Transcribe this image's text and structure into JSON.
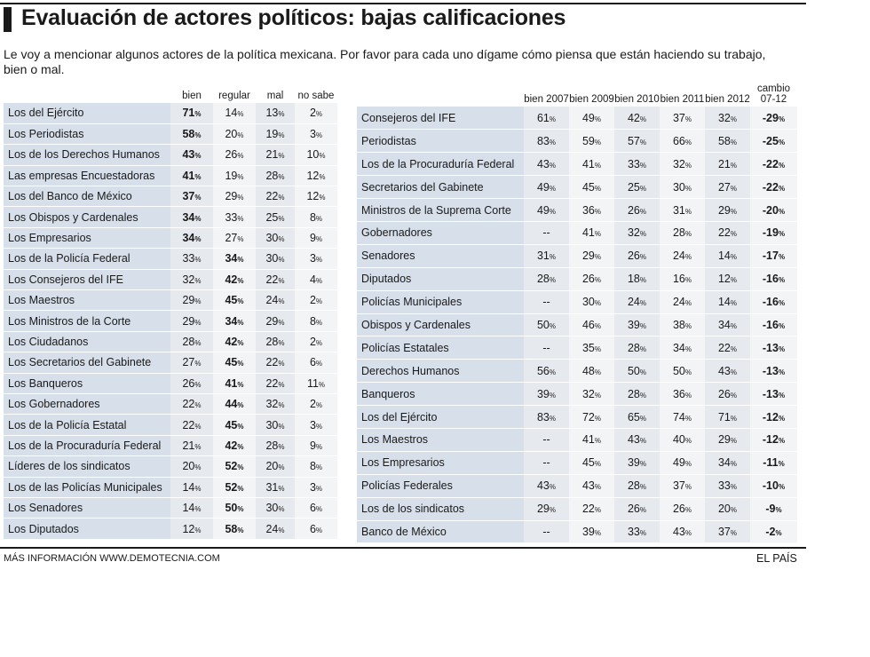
{
  "title": "Evaluación de actores políticos: bajas calificaciones",
  "subtitle": "Le voy a mencionar algunos actores de la política mexicana. Por favor para cada uno dígame cómo piensa que están haciendo su trabajo, bien o mal.",
  "footer": {
    "source": "MÁS INFORMACIÓN WWW.DEMOTECNIA.COM",
    "brand": "EL PAÍS"
  },
  "chart_data": [
    {
      "type": "table",
      "columns": [
        "bien",
        "regular",
        "mal",
        "no sabe"
      ],
      "unit": "%",
      "highlight_rule": "largest value per row shown in bold",
      "rows": [
        {
          "actor": "Los del Ejército",
          "values": [
            71,
            14,
            13,
            2
          ]
        },
        {
          "actor": "Los Periodistas",
          "values": [
            58,
            20,
            19,
            3
          ]
        },
        {
          "actor": "Los de los Derechos Humanos",
          "values": [
            43,
            26,
            21,
            10
          ]
        },
        {
          "actor": "Las empresas Encuestadoras",
          "values": [
            41,
            19,
            28,
            12
          ]
        },
        {
          "actor": "Los del Banco de México",
          "values": [
            37,
            29,
            22,
            12
          ]
        },
        {
          "actor": "Los Obispos y Cardenales",
          "values": [
            34,
            33,
            25,
            8
          ]
        },
        {
          "actor": "Los Empresarios",
          "values": [
            34,
            27,
            30,
            9
          ]
        },
        {
          "actor": "Los de la Policía Federal",
          "values": [
            33,
            34,
            30,
            3
          ]
        },
        {
          "actor": "Los Consejeros del IFE",
          "values": [
            32,
            42,
            22,
            4
          ]
        },
        {
          "actor": "Los Maestros",
          "values": [
            29,
            45,
            24,
            2
          ]
        },
        {
          "actor": "Los Ministros de la Corte",
          "values": [
            29,
            34,
            29,
            8
          ]
        },
        {
          "actor": "Los Ciudadanos",
          "values": [
            28,
            42,
            28,
            2
          ]
        },
        {
          "actor": "Los Secretarios del Gabinete",
          "values": [
            27,
            45,
            22,
            6
          ]
        },
        {
          "actor": "Los Banqueros",
          "values": [
            26,
            41,
            22,
            11
          ]
        },
        {
          "actor": "Los Gobernadores",
          "values": [
            22,
            44,
            32,
            2
          ]
        },
        {
          "actor": "Los de la Policía Estatal",
          "values": [
            22,
            45,
            30,
            3
          ]
        },
        {
          "actor": "Los de la Procuraduría Federal",
          "values": [
            21,
            42,
            28,
            9
          ]
        },
        {
          "actor": "Líderes de los sindicatos",
          "values": [
            20,
            52,
            20,
            8
          ]
        },
        {
          "actor": "Los de las Policías Municipales",
          "values": [
            14,
            52,
            31,
            3
          ]
        },
        {
          "actor": "Los Senadores",
          "values": [
            14,
            50,
            30,
            6
          ]
        },
        {
          "actor": "Los Diputados",
          "values": [
            12,
            58,
            24,
            6
          ]
        }
      ]
    },
    {
      "type": "table",
      "columns": [
        "bien 2007",
        "bien 2009",
        "bien 2010",
        "bien 2011",
        "bien 2012",
        "cambio 07-12"
      ],
      "unit": "%",
      "rows": [
        {
          "actor": "Consejeros del IFE",
          "values": [
            "61",
            "49",
            "42",
            "37",
            "32"
          ],
          "cambio": "-29"
        },
        {
          "actor": "Periodistas",
          "values": [
            "83",
            "59",
            "57",
            "66",
            "58"
          ],
          "cambio": "-25"
        },
        {
          "actor": "Los de la Procuraduría Federal",
          "values": [
            "43",
            "41",
            "33",
            "32",
            "21"
          ],
          "cambio": "-22"
        },
        {
          "actor": "Secretarios del Gabinete",
          "values": [
            "49",
            "45",
            "25",
            "30",
            "27"
          ],
          "cambio": "-22"
        },
        {
          "actor": "Ministros de la Suprema Corte",
          "values": [
            "49",
            "36",
            "26",
            "31",
            "29"
          ],
          "cambio": "-20"
        },
        {
          "actor": "Gobernadores",
          "values": [
            "--",
            "41",
            "32",
            "28",
            "22"
          ],
          "cambio": "-19"
        },
        {
          "actor": "Senadores",
          "values": [
            "31",
            "29",
            "26",
            "24",
            "14"
          ],
          "cambio": "-17"
        },
        {
          "actor": "Diputados",
          "values": [
            "28",
            "26",
            "18",
            "16",
            "12"
          ],
          "cambio": "-16"
        },
        {
          "actor": "Policías Municipales",
          "values": [
            "--",
            "30",
            "24",
            "24",
            "14"
          ],
          "cambio": "-16"
        },
        {
          "actor": "Obispos y Cardenales",
          "values": [
            "50",
            "46",
            "39",
            "38",
            "34"
          ],
          "cambio": "-16"
        },
        {
          "actor": "Policías Estatales",
          "values": [
            "--",
            "35",
            "28",
            "34",
            "22"
          ],
          "cambio": "-13"
        },
        {
          "actor": "Derechos Humanos",
          "values": [
            "56",
            "48",
            "50",
            "50",
            "43"
          ],
          "cambio": "-13"
        },
        {
          "actor": "Banqueros",
          "values": [
            "39",
            "32",
            "28",
            "36",
            "26"
          ],
          "cambio": "-13"
        },
        {
          "actor": "Los del Ejército",
          "values": [
            "83",
            "72",
            "65",
            "74",
            "71"
          ],
          "cambio": "-12"
        },
        {
          "actor": "Los Maestros",
          "values": [
            "--",
            "41",
            "43",
            "40",
            "29"
          ],
          "cambio": "-12"
        },
        {
          "actor": "Los Empresarios",
          "values": [
            "--",
            "45",
            "39",
            "49",
            "34"
          ],
          "cambio": "-11"
        },
        {
          "actor": "Policías Federales",
          "values": [
            "43",
            "43",
            "28",
            "37",
            "33"
          ],
          "cambio": "-10"
        },
        {
          "actor": "Los de los sindicatos",
          "values": [
            "29",
            "22",
            "26",
            "26",
            "20"
          ],
          "cambio": "-9"
        },
        {
          "actor": "Banco de México",
          "values": [
            "--",
            "39",
            "33",
            "43",
            "37"
          ],
          "cambio": "-2"
        }
      ]
    }
  ]
}
